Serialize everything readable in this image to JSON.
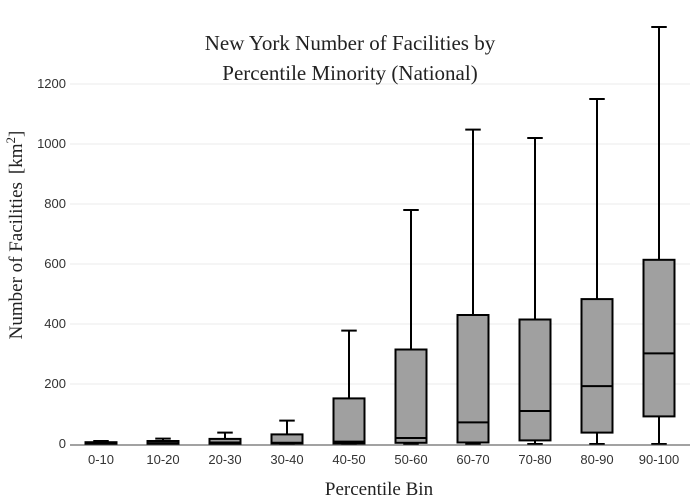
{
  "chart_data": {
    "type": "box",
    "title_lines": [
      "New York Number of Facilities by",
      "Percentile Minority (National)"
    ],
    "xlabel": "Percentile Bin",
    "ylabel": "Number of Facilities",
    "ylabel_unit_base": "[km",
    "ylabel_unit_sup": "2",
    "ylabel_unit_close": "]",
    "ylim": [
      0,
      1390
    ],
    "yticks": [
      0,
      200,
      400,
      600,
      800,
      1000,
      1200
    ],
    "grid": true,
    "box_color": "#a0a0a0",
    "categories": [
      "0-10",
      "10-20",
      "20-30",
      "30-40",
      "40-50",
      "50-60",
      "60-70",
      "70-80",
      "80-90",
      "90-100"
    ],
    "boxes": [
      {
        "min": 0,
        "q1": 0,
        "median": 2,
        "q3": 6,
        "max": 10
      },
      {
        "min": 0,
        "q1": 0,
        "median": 3,
        "q3": 10,
        "max": 18
      },
      {
        "min": 0,
        "q1": 1,
        "median": 5,
        "q3": 17,
        "max": 38
      },
      {
        "min": 0,
        "q1": 2,
        "median": 4,
        "q3": 32,
        "max": 78
      },
      {
        "min": 0,
        "q1": 2,
        "median": 8,
        "q3": 152,
        "max": 378
      },
      {
        "min": 0,
        "q1": 4,
        "median": 20,
        "q3": 315,
        "max": 780
      },
      {
        "min": 0,
        "q1": 5,
        "median": 72,
        "q3": 430,
        "max": 1048
      },
      {
        "min": 0,
        "q1": 12,
        "median": 110,
        "q3": 415,
        "max": 1020
      },
      {
        "min": 0,
        "q1": 38,
        "median": 193,
        "q3": 483,
        "max": 1150
      },
      {
        "min": 0,
        "q1": 92,
        "median": 302,
        "q3": 614,
        "max": 1390
      }
    ]
  }
}
